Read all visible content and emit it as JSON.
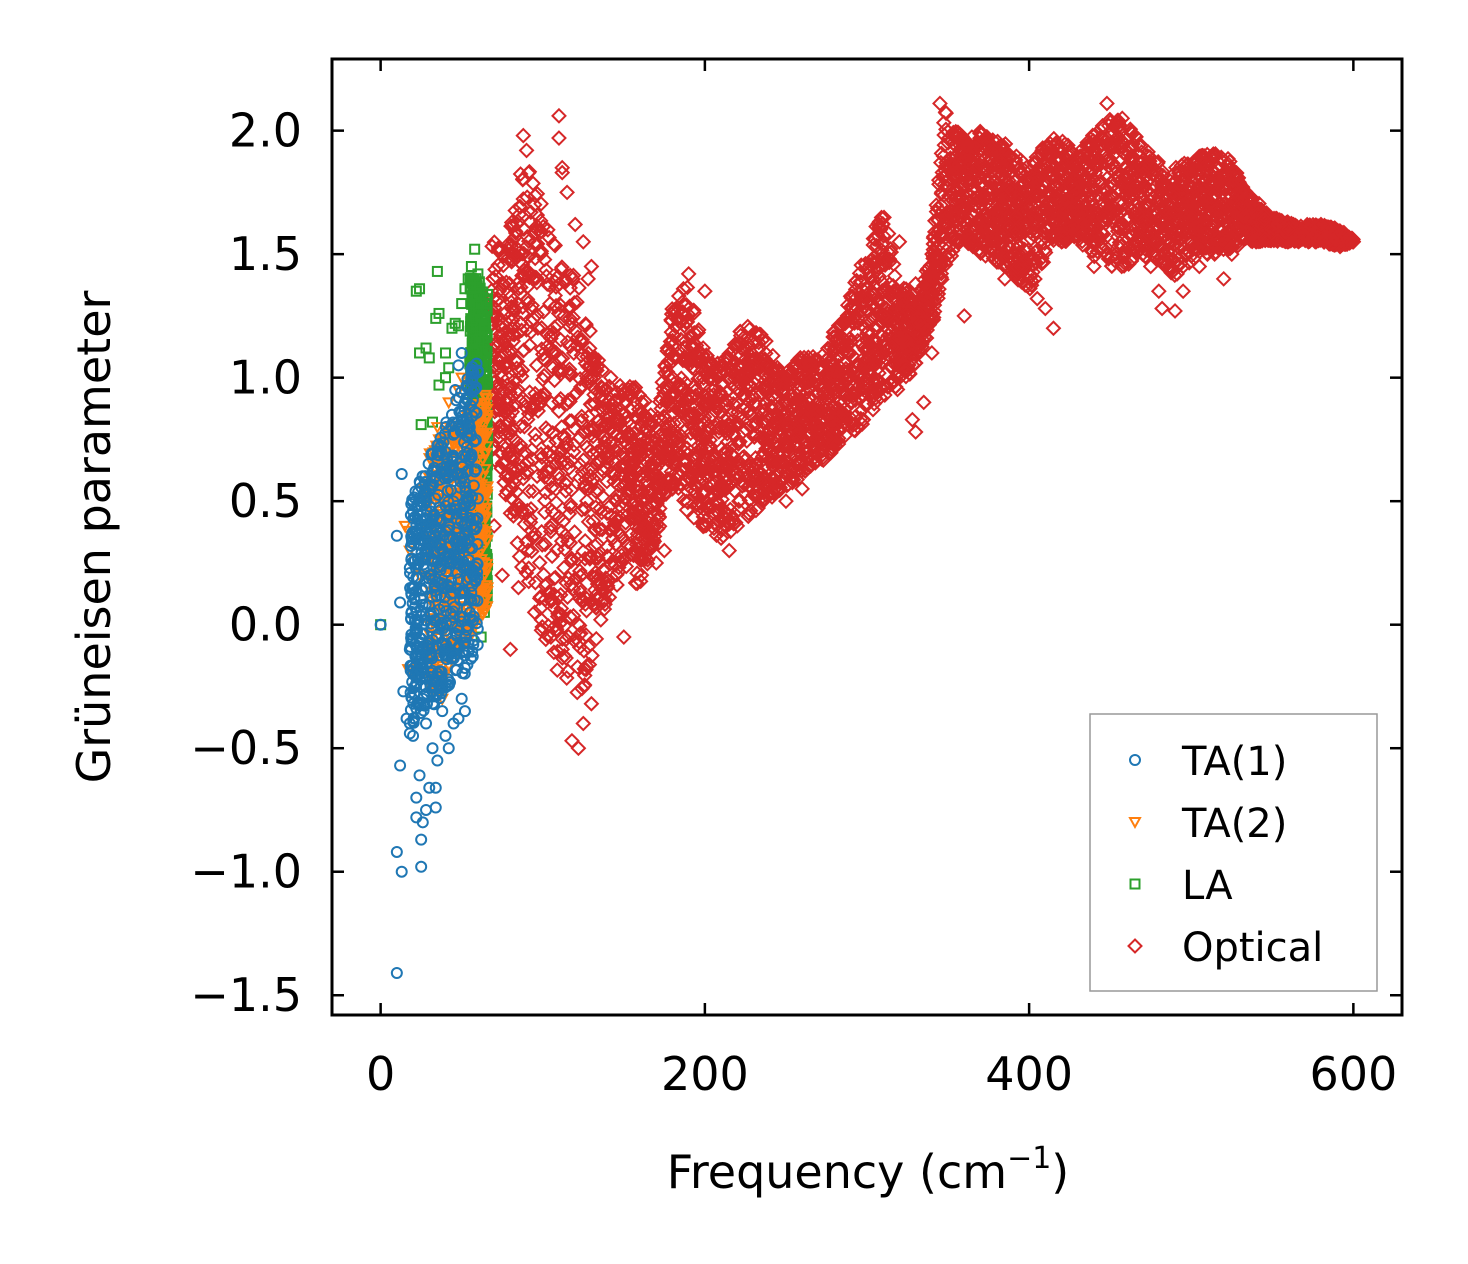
{
  "chart_data": {
    "type": "scatter",
    "title": "",
    "xlabel": "Frequency (cm",
    "xlabel_sup": "−1",
    "xlabel_tail": ")",
    "ylabel": "Grüneisen parameter",
    "xlim": [
      -30,
      630
    ],
    "ylim": [
      -1.58,
      2.29
    ],
    "xticks": [
      0,
      200,
      400,
      600
    ],
    "xtick_labels": [
      "0",
      "200",
      "400",
      "600"
    ],
    "yticks": [
      -1.5,
      -1.0,
      -0.5,
      0.0,
      0.5,
      1.0,
      1.5,
      2.0
    ],
    "ytick_labels": [
      "−1.5",
      "−1.0",
      "−0.5",
      "0.0",
      "0.5",
      "1.0",
      "1.5",
      "2.0"
    ],
    "grid": false,
    "legend_position": "bottom-right",
    "series": [
      {
        "name": "TA(1)",
        "marker": "circle",
        "color": "#1f77b4",
        "points": [
          [
            0,
            0
          ],
          [
            10,
            -1.41
          ],
          [
            10,
            -0.92
          ],
          [
            13,
            -1.0
          ],
          [
            13,
            0.61
          ],
          [
            10,
            0.36
          ],
          [
            12,
            0.09
          ],
          [
            14,
            -0.27
          ],
          [
            16,
            -0.38
          ],
          [
            18,
            -0.44
          ],
          [
            12,
            -0.57
          ],
          [
            20,
            -0.45
          ],
          [
            22,
            -0.7
          ],
          [
            22,
            -0.78
          ],
          [
            25,
            -0.98
          ],
          [
            25,
            -0.87
          ],
          [
            24,
            -0.61
          ],
          [
            26,
            -0.8
          ],
          [
            28,
            -0.75
          ],
          [
            30,
            -0.66
          ],
          [
            34,
            -0.66
          ],
          [
            34,
            -0.74
          ],
          [
            18,
            0.23
          ],
          [
            20,
            0.15
          ],
          [
            22,
            0.05
          ],
          [
            18,
            -0.1
          ],
          [
            20,
            -0.2
          ],
          [
            24,
            0.5
          ],
          [
            26,
            0.4
          ],
          [
            28,
            0.3
          ],
          [
            30,
            0.2
          ],
          [
            26,
            -0.3
          ],
          [
            28,
            -0.4
          ],
          [
            32,
            -0.5
          ],
          [
            35,
            -0.55
          ],
          [
            38,
            -0.35
          ],
          [
            40,
            -0.45
          ],
          [
            42,
            -0.5
          ],
          [
            45,
            -0.4
          ],
          [
            48,
            -0.38
          ],
          [
            50,
            -0.3
          ],
          [
            52,
            -0.35
          ],
          [
            40,
            0.7
          ],
          [
            42,
            0.6
          ],
          [
            44,
            0.85
          ],
          [
            46,
            0.95
          ],
          [
            48,
            1.05
          ],
          [
            50,
            1.1
          ],
          [
            52,
            0.9
          ],
          [
            55,
            0.8
          ],
          [
            56,
            0.4
          ],
          [
            58,
            0.1
          ]
        ],
        "core": {
          "x": [
            18,
            60
          ],
          "y_low": [
            -0.42,
            -0.15
          ],
          "y_high": [
            0.5,
            1.1
          ]
        }
      },
      {
        "name": "TA(2)",
        "marker": "triangle-down",
        "color": "#ff7f0e",
        "points": [
          [
            15,
            0.4
          ],
          [
            17,
            0.38
          ],
          [
            18,
            0.3
          ],
          [
            17,
            -0.18
          ],
          [
            20,
            -0.2
          ],
          [
            22,
            0.35
          ],
          [
            24,
            0.2
          ],
          [
            25,
            0.25
          ],
          [
            27,
            0.55
          ],
          [
            30,
            0.38
          ],
          [
            32,
            0.45
          ],
          [
            33,
            0.55
          ],
          [
            36,
            0.75
          ],
          [
            35,
            0.8
          ],
          [
            38,
            0.65
          ],
          [
            40,
            0.8
          ],
          [
            42,
            0.9
          ],
          [
            45,
            0.7
          ],
          [
            48,
            0.95
          ],
          [
            50,
            1.0
          ],
          [
            55,
            0.85
          ],
          [
            58,
            0.6
          ],
          [
            60,
            0.5
          ],
          [
            62,
            0.3
          ],
          [
            64,
            0.2
          ],
          [
            30,
            -0.1
          ],
          [
            34,
            -0.2
          ],
          [
            38,
            -0.3
          ]
        ],
        "core": {
          "x": [
            30,
            66
          ],
          "y_low": [
            -0.3,
            0.05
          ],
          "y_high": [
            0.7,
            0.95
          ]
        }
      },
      {
        "name": "LA",
        "marker": "square",
        "color": "#2ca02c",
        "points": [
          [
            0,
            0
          ],
          [
            22,
            1.35
          ],
          [
            24,
            1.36
          ],
          [
            24,
            1.1
          ],
          [
            28,
            1.12
          ],
          [
            30,
            1.08
          ],
          [
            34,
            1.24
          ],
          [
            35,
            1.43
          ],
          [
            36,
            1.26
          ],
          [
            40,
            1.1
          ],
          [
            25,
            0.81
          ],
          [
            32,
            0.82
          ],
          [
            36,
            0.97
          ],
          [
            40,
            1.0
          ],
          [
            42,
            1.04
          ],
          [
            44,
            1.2
          ],
          [
            46,
            1.22
          ],
          [
            48,
            1.21
          ],
          [
            50,
            1.3
          ],
          [
            52,
            1.36
          ],
          [
            54,
            1.4
          ],
          [
            56,
            1.45
          ],
          [
            58,
            1.52
          ],
          [
            60,
            1.42
          ],
          [
            62,
            1.3
          ],
          [
            64,
            1.2
          ],
          [
            62,
            0.15
          ],
          [
            64,
            0.05
          ],
          [
            62,
            -0.05
          ]
        ],
        "core": {
          "x": [
            55,
            66
          ],
          "y_low": [
            0.1,
            0.1
          ],
          "y_high": [
            1.45,
            1.35
          ]
        }
      },
      {
        "name": "Optical",
        "marker": "diamond",
        "color": "#d62728",
        "points": [
          [
            88,
            1.98
          ],
          [
            90,
            1.92
          ],
          [
            110,
            2.06
          ],
          [
            110,
            1.97
          ],
          [
            112,
            1.85
          ],
          [
            112,
            1.83
          ],
          [
            95,
            1.7
          ],
          [
            115,
            1.75
          ],
          [
            120,
            1.62
          ],
          [
            125,
            1.55
          ],
          [
            130,
            1.45
          ],
          [
            128,
            1.4
          ],
          [
            118,
            -0.47
          ],
          [
            122,
            -0.5
          ],
          [
            125,
            -0.4
          ],
          [
            130,
            -0.32
          ],
          [
            112,
            -0.1
          ],
          [
            105,
            -0.05
          ],
          [
            95,
            0.05
          ],
          [
            85,
            0.15
          ],
          [
            80,
            -0.1
          ],
          [
            75,
            0.2
          ],
          [
            70,
            0.4
          ],
          [
            180,
            1.15
          ],
          [
            190,
            1.42
          ],
          [
            200,
            1.35
          ],
          [
            230,
            1.05
          ],
          [
            255,
            0.9
          ],
          [
            265,
            1.05
          ],
          [
            275,
            0.85
          ],
          [
            285,
            1.1
          ],
          [
            300,
            1.3
          ],
          [
            310,
            1.25
          ],
          [
            320,
            1.55
          ],
          [
            330,
            1.38
          ],
          [
            335,
            1.2
          ],
          [
            340,
            1.1
          ],
          [
            345,
            2.11
          ],
          [
            350,
            1.95
          ],
          [
            355,
            1.9
          ],
          [
            360,
            1.78
          ],
          [
            380,
            1.7
          ],
          [
            385,
            1.4
          ],
          [
            390,
            1.5
          ],
          [
            395,
            1.45
          ],
          [
            405,
            1.32
          ],
          [
            410,
            1.28
          ],
          [
            415,
            1.2
          ],
          [
            420,
            1.55
          ],
          [
            430,
            1.65
          ],
          [
            440,
            1.45
          ],
          [
            448,
            2.11
          ],
          [
            455,
            2.0
          ],
          [
            460,
            1.85
          ],
          [
            470,
            1.5
          ],
          [
            475,
            1.45
          ],
          [
            480,
            1.35
          ],
          [
            482,
            1.28
          ],
          [
            490,
            1.27
          ],
          [
            495,
            1.35
          ],
          [
            500,
            1.55
          ],
          [
            505,
            1.45
          ],
          [
            510,
            1.5
          ],
          [
            520,
            1.4
          ],
          [
            525,
            1.5
          ],
          [
            530,
            1.6
          ],
          [
            540,
            1.55
          ],
          [
            560,
            1.6
          ],
          [
            580,
            1.62
          ],
          [
            600,
            1.55
          ],
          [
            345,
            1.4
          ],
          [
            360,
            1.25
          ],
          [
            335,
            0.9
          ],
          [
            328,
            0.83
          ],
          [
            330,
            0.78
          ],
          [
            320,
            1.0
          ],
          [
            200,
            0.4
          ],
          [
            210,
            0.35
          ],
          [
            215,
            0.3
          ],
          [
            220,
            0.4
          ],
          [
            250,
            0.5
          ],
          [
            260,
            0.55
          ],
          [
            175,
            0.3
          ],
          [
            168,
            0.4
          ],
          [
            160,
            0.6
          ],
          [
            155,
            0.7
          ],
          [
            145,
            0.9
          ],
          [
            142,
            1.0
          ],
          [
            138,
            0.95
          ],
          [
            135,
            0.25
          ],
          [
            140,
            0.15
          ],
          [
            150,
            -0.05
          ],
          [
            170,
            0.25
          ],
          [
            180,
            0.55
          ],
          [
            190,
            0.6
          ]
        ],
        "envelope": {
          "x": [
            68,
            80,
            88,
            95,
            103,
            110,
            118,
            126,
            134,
            142,
            150,
            160,
            170,
            180,
            190,
            200,
            210,
            222,
            235,
            248,
            260,
            272,
            285,
            298,
            310,
            320,
            330,
            340,
            348,
            358,
            370,
            385,
            400,
            415,
            430,
            445,
            460,
            475,
            490,
            505,
            520,
            535,
            550,
            565,
            580,
            592,
            600
          ],
          "upper": [
            1.55,
            1.62,
            1.88,
            1.8,
            1.65,
            1.55,
            1.45,
            1.35,
            1.1,
            0.95,
            1.0,
            0.95,
            0.8,
            1.3,
            1.4,
            1.1,
            1.05,
            1.2,
            1.22,
            1.0,
            1.1,
            1.1,
            1.25,
            1.5,
            1.68,
            1.4,
            1.3,
            1.5,
            2.08,
            1.98,
            2.0,
            1.95,
            1.85,
            2.0,
            1.9,
            2.05,
            2.05,
            1.9,
            1.85,
            1.9,
            1.92,
            1.75,
            1.65,
            1.62,
            1.62,
            1.6,
            1.56
          ],
          "lower": [
            0.7,
            0.45,
            0.2,
            0.05,
            -0.1,
            -0.2,
            -0.3,
            -0.25,
            -0.05,
            0.1,
            0.2,
            0.15,
            0.35,
            0.55,
            0.45,
            0.38,
            0.35,
            0.4,
            0.48,
            0.55,
            0.6,
            0.65,
            0.75,
            0.8,
            0.9,
            0.95,
            1.05,
            1.2,
            1.45,
            1.55,
            1.5,
            1.45,
            1.35,
            1.55,
            1.55,
            1.45,
            1.45,
            1.5,
            1.4,
            1.5,
            1.5,
            1.55,
            1.55,
            1.55,
            1.55,
            1.53,
            1.55
          ]
        }
      }
    ]
  }
}
